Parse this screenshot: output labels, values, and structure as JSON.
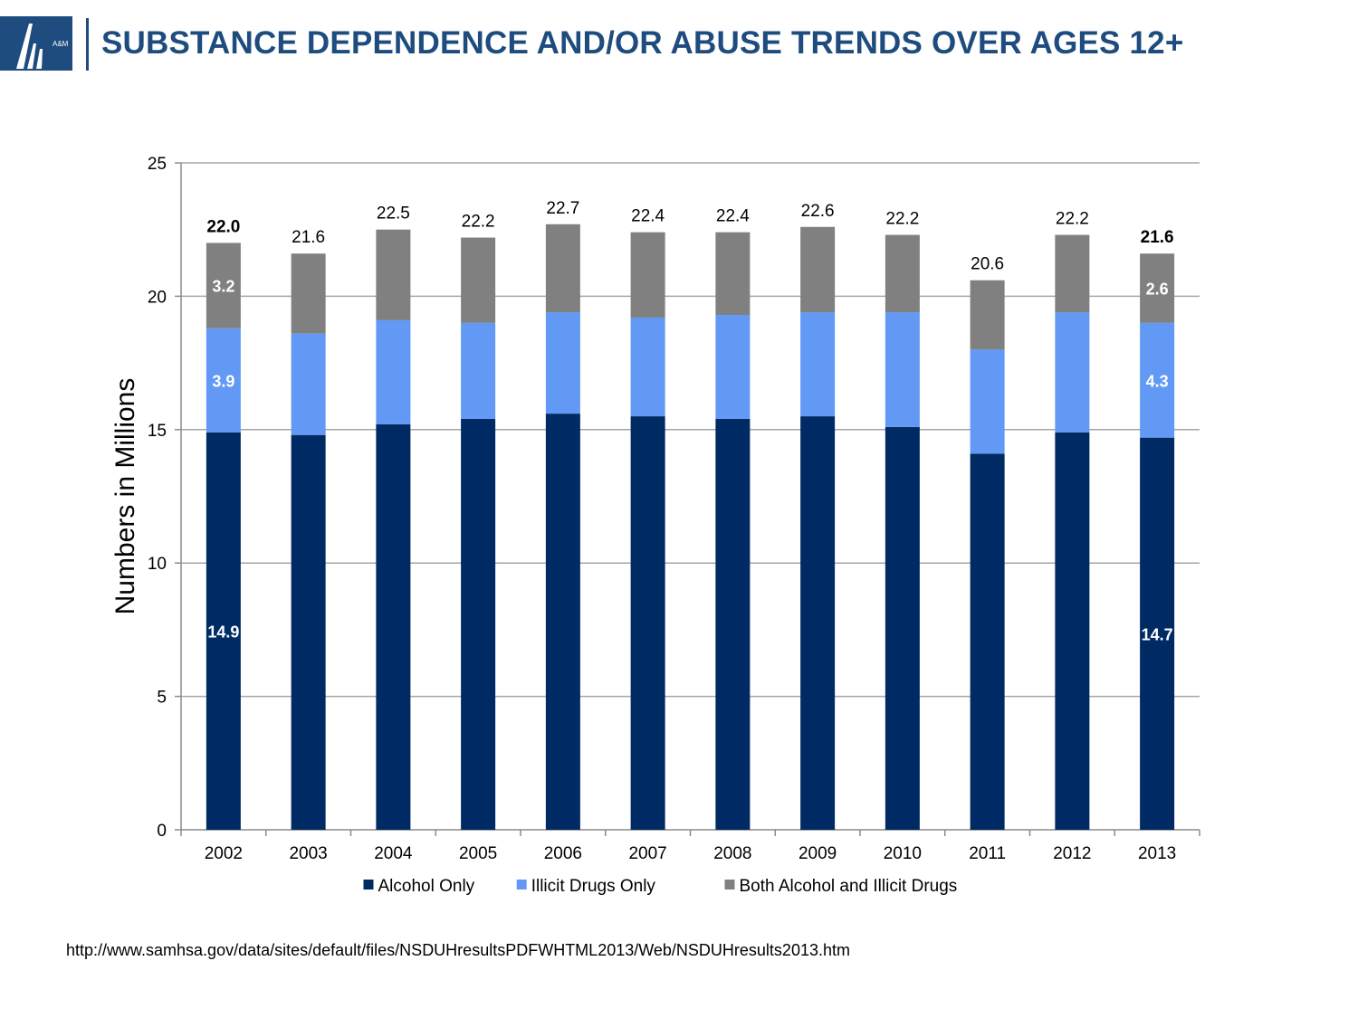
{
  "header": {
    "title": "SUBSTANCE DEPENDENCE AND/OR ABUSE TRENDS OVER AGES 12+",
    "logo_text": "A&M",
    "logo_icon": "am-logo-icon",
    "brand_color": "#1e4c7e"
  },
  "source_url": "http://www.samhsa.gov/data/sites/default/files/NSDUHresultsPDFWHTML2013/Web/NSDUHresults2013.htm",
  "chart_data": {
    "type": "bar",
    "stacked": true,
    "title": "",
    "xlabel": "",
    "ylabel": "Numbers in Millions",
    "ylim": [
      0,
      25
    ],
    "yticks": [
      0,
      5,
      10,
      15,
      20,
      25
    ],
    "grid": true,
    "legend_position": "bottom",
    "categories": [
      "2002",
      "2003",
      "2004",
      "2005",
      "2006",
      "2007",
      "2008",
      "2009",
      "2010",
      "2011",
      "2012",
      "2013"
    ],
    "series": [
      {
        "name": "Alcohol Only",
        "color": "#002a64",
        "values": [
          14.9,
          14.8,
          15.2,
          15.4,
          15.6,
          15.5,
          15.4,
          15.5,
          15.1,
          14.1,
          14.9,
          14.7
        ],
        "labels": [
          "14.9",
          "",
          "",
          "",
          "",
          "",
          "",
          "",
          "",
          "",
          "",
          "14.7"
        ]
      },
      {
        "name": "Illicit Drugs Only",
        "color": "#6299f5",
        "values": [
          3.9,
          3.8,
          3.9,
          3.6,
          3.8,
          3.7,
          3.9,
          3.9,
          4.3,
          3.9,
          4.5,
          4.3
        ],
        "labels": [
          "3.9",
          "",
          "",
          "",
          "",
          "",
          "",
          "",
          "",
          "",
          "",
          "4.3"
        ]
      },
      {
        "name": "Both Alcohol and Illicit Drugs",
        "color": "#808080",
        "values": [
          3.2,
          3.0,
          3.4,
          3.2,
          3.3,
          3.2,
          3.1,
          3.2,
          2.9,
          2.6,
          2.9,
          2.6
        ],
        "labels": [
          "3.2",
          "",
          "",
          "",
          "",
          "",
          "",
          "",
          "",
          "",
          "",
          "2.6"
        ]
      }
    ],
    "totals": [
      "22.0",
      "21.6",
      "22.5",
      "22.2",
      "22.7",
      "22.4",
      "22.4",
      "22.6",
      "22.2",
      "20.6",
      "22.2",
      "21.6"
    ],
    "totals_bold": [
      true,
      false,
      false,
      false,
      false,
      false,
      false,
      false,
      false,
      false,
      false,
      true
    ]
  }
}
